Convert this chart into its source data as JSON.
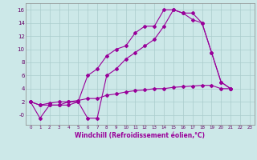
{
  "xlabel": "Windchill (Refroidissement éolien,°C)",
  "background_color": "#cce8e8",
  "grid_color": "#aacccc",
  "line_color": "#990099",
  "xlim": [
    -0.5,
    23.5
  ],
  "ylim": [
    -1.5,
    17
  ],
  "yticks": [
    0,
    2,
    4,
    6,
    8,
    10,
    12,
    14,
    16
  ],
  "ytick_labels": [
    "0",
    "2",
    "4",
    "6",
    "8",
    "10",
    "12",
    "14",
    "16"
  ],
  "xticks": [
    0,
    1,
    2,
    3,
    4,
    5,
    6,
    7,
    8,
    9,
    10,
    11,
    12,
    13,
    14,
    15,
    16,
    17,
    18,
    19,
    20,
    21,
    22,
    23
  ],
  "series1_x": [
    0,
    1,
    2,
    3,
    4,
    5,
    6,
    7,
    8,
    9,
    10,
    11,
    12,
    13,
    14,
    15,
    16,
    17,
    18,
    19,
    20,
    21
  ],
  "series1_y": [
    2.0,
    -0.5,
    1.5,
    1.5,
    2.0,
    2.0,
    6.0,
    7.0,
    9.0,
    10.0,
    10.5,
    12.5,
    13.5,
    13.5,
    16.0,
    16.0,
    15.5,
    15.5,
    14.0,
    9.5,
    5.0,
    4.0
  ],
  "series2_x": [
    0,
    1,
    2,
    3,
    4,
    5,
    6,
    7,
    8,
    9,
    10,
    11,
    12,
    13,
    14,
    15,
    16,
    17,
    18,
    19,
    20,
    21
  ],
  "series2_y": [
    2.0,
    1.5,
    1.5,
    1.5,
    1.5,
    2.0,
    -0.5,
    -0.5,
    6.0,
    7.0,
    8.5,
    9.5,
    10.5,
    11.5,
    13.5,
    16.0,
    15.5,
    14.5,
    14.0,
    9.5,
    5.0,
    4.0
  ],
  "series3_x": [
    0,
    1,
    2,
    3,
    4,
    5,
    6,
    7,
    8,
    9,
    10,
    11,
    12,
    13,
    14,
    15,
    16,
    17,
    18,
    19,
    20,
    21
  ],
  "series3_y": [
    2.0,
    1.5,
    1.8,
    2.0,
    2.0,
    2.2,
    2.5,
    2.5,
    3.0,
    3.2,
    3.5,
    3.7,
    3.8,
    4.0,
    4.0,
    4.2,
    4.3,
    4.4,
    4.5,
    4.5,
    4.0,
    4.0
  ],
  "ylabel_neg0": "-0"
}
